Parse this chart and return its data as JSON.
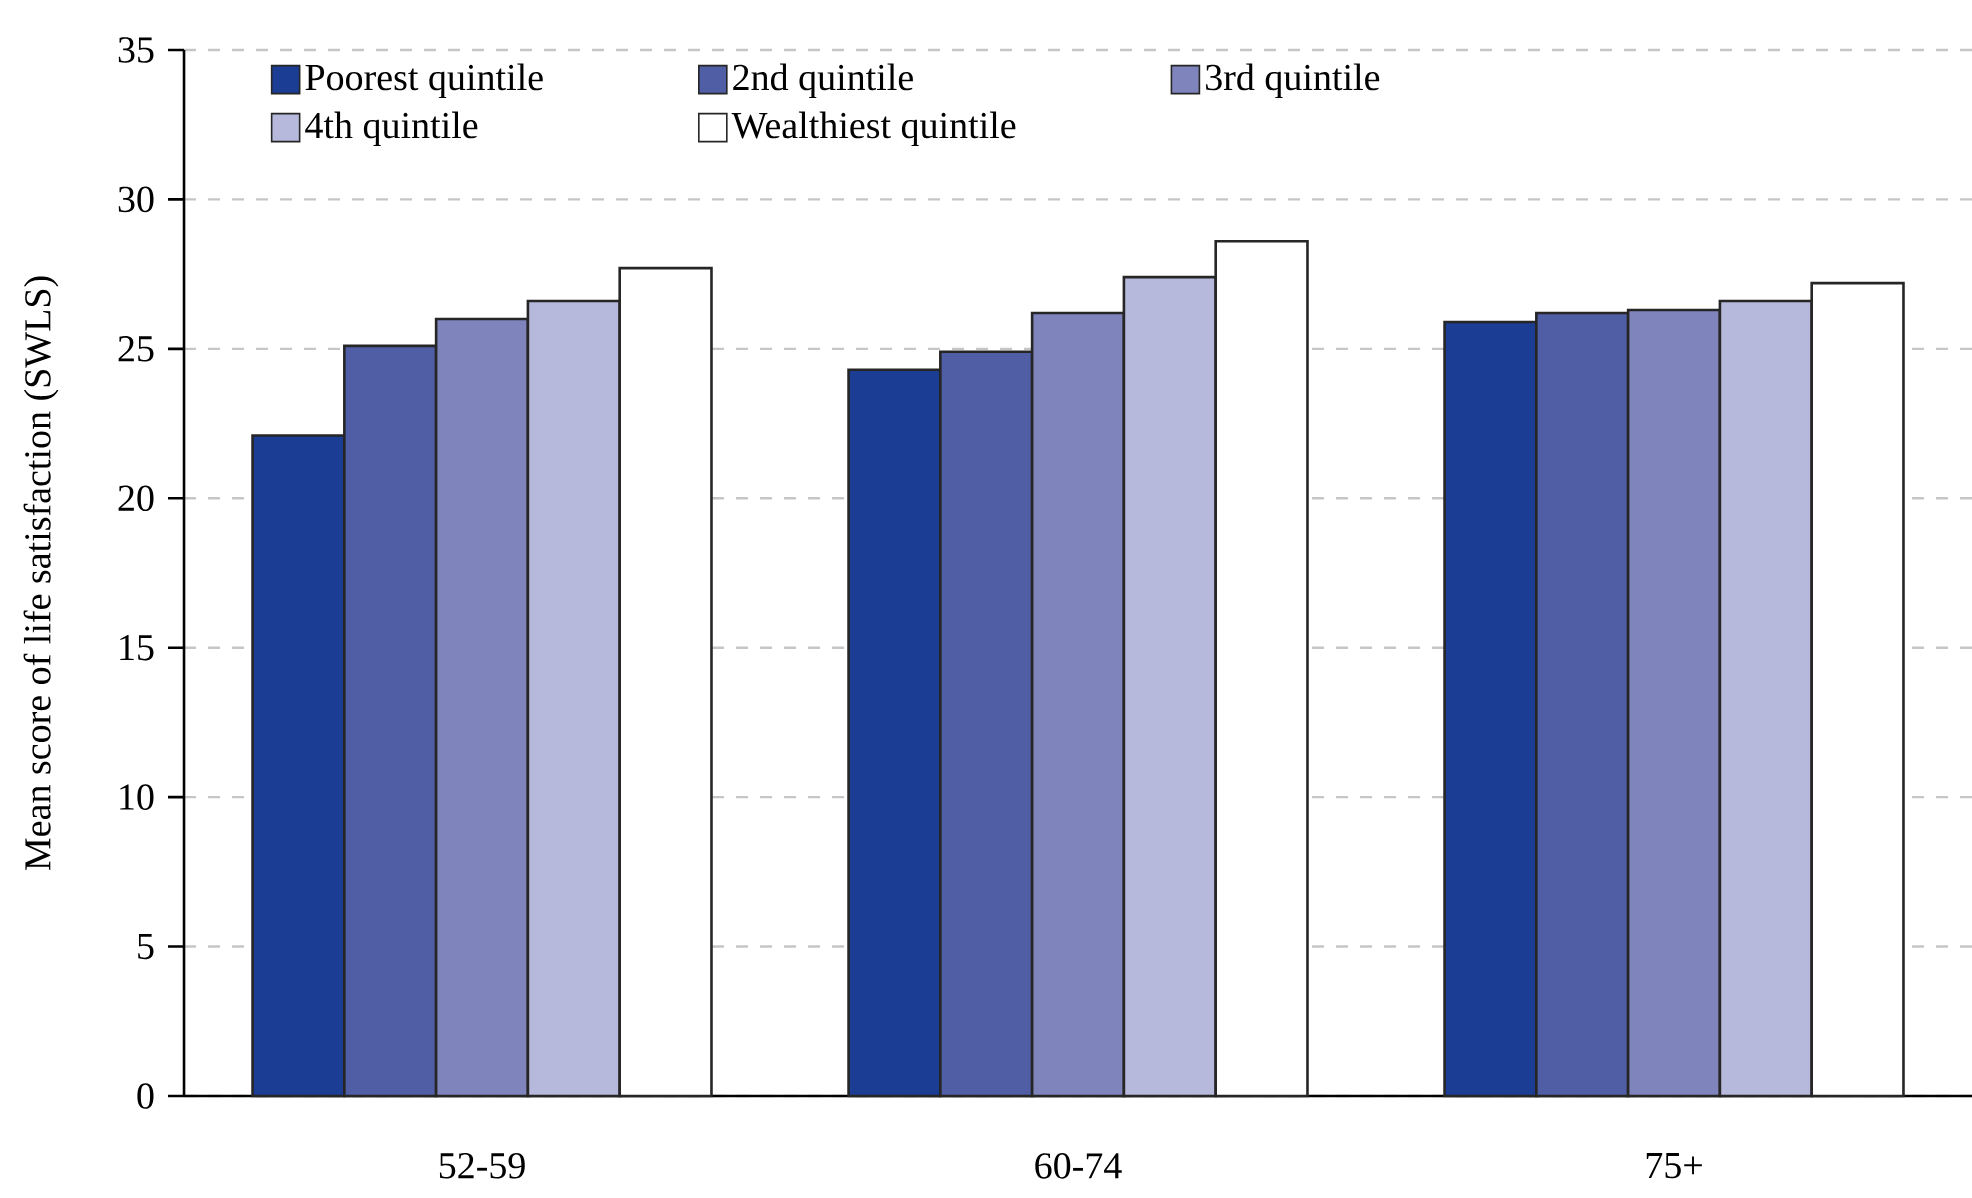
{
  "chart_data": {
    "type": "bar",
    "ylabel": "Mean score of life satisfaction (SWLS)",
    "categories": [
      "52-59",
      "60-74",
      "75+"
    ],
    "series": [
      {
        "name": "Poorest quintile",
        "color": "#1b3d93",
        "values": [
          22.1,
          24.3,
          25.9
        ]
      },
      {
        "name": "2nd quintile",
        "color": "#505ea6",
        "values": [
          25.1,
          24.9,
          26.2
        ]
      },
      {
        "name": "3rd quintile",
        "color": "#7f85bc",
        "values": [
          26.0,
          26.2,
          26.3
        ]
      },
      {
        "name": "4th quintile",
        "color": "#b6b9db",
        "values": [
          26.6,
          27.4,
          26.6
        ]
      },
      {
        "name": "Wealthiest quintile",
        "color": "#ffffff",
        "values": [
          27.7,
          28.6,
          27.2
        ]
      }
    ],
    "ylim": [
      0,
      35
    ],
    "yticks": [
      0,
      5,
      10,
      15,
      20,
      25,
      30,
      35
    ],
    "grid": "y",
    "legend": "top"
  }
}
